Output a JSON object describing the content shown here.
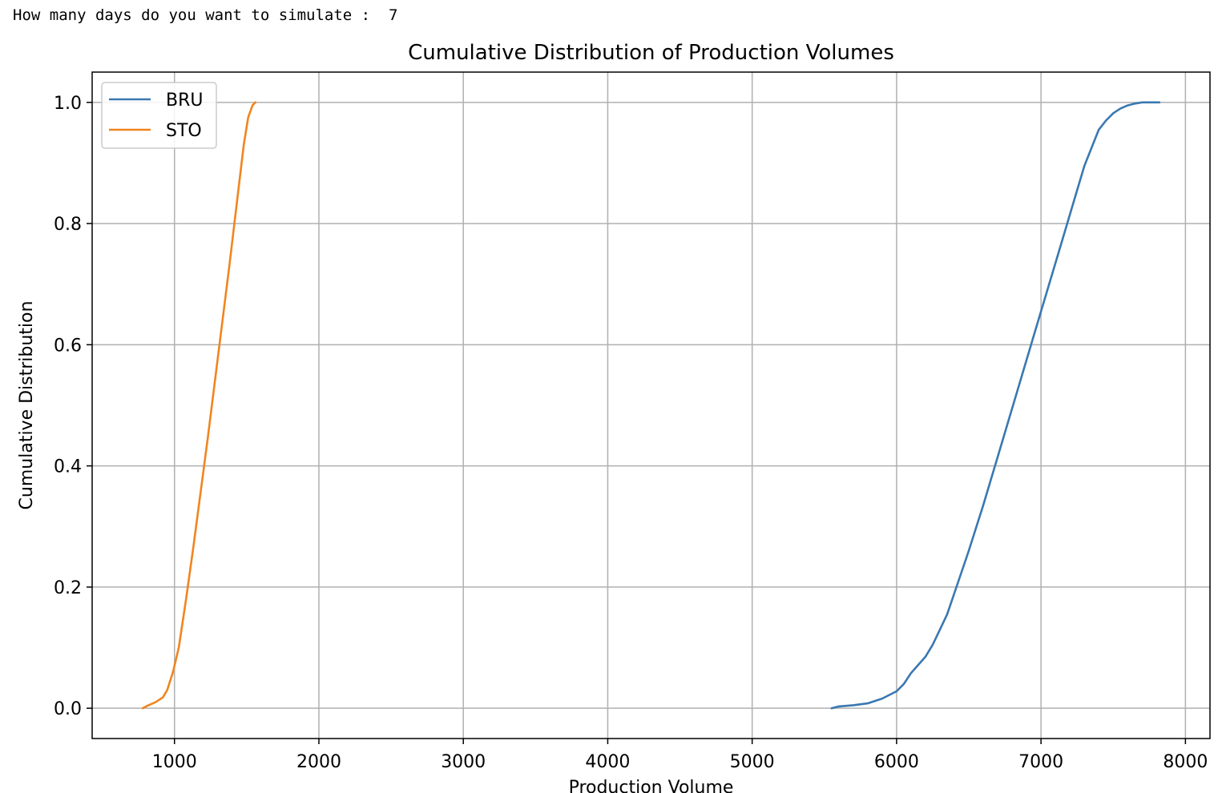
{
  "prompt": {
    "text": "How many days do you want to simulate :",
    "value": "7"
  },
  "chart_data": {
    "type": "line",
    "title": "Cumulative Distribution of Production Volumes",
    "xlabel": "Production Volume",
    "ylabel": "Cumulative Distribution",
    "xlim": [
      430,
      8170
    ],
    "ylim": [
      -0.05,
      1.05
    ],
    "xticks": [
      1000,
      2000,
      3000,
      4000,
      5000,
      6000,
      7000,
      8000
    ],
    "yticks": [
      0.0,
      0.2,
      0.4,
      0.6,
      0.8,
      1.0
    ],
    "xtick_labels": [
      "1000",
      "2000",
      "3000",
      "4000",
      "5000",
      "6000",
      "7000",
      "8000"
    ],
    "ytick_labels": [
      "0.0",
      "0.2",
      "0.4",
      "0.6",
      "0.8",
      "1.0"
    ],
    "grid": true,
    "legend_position": "top-left",
    "series": [
      {
        "name": "BRU",
        "color": "#3a78b1",
        "x": [
          5550,
          5600,
          5700,
          5800,
          5850,
          5900,
          6000,
          6050,
          6100,
          6200,
          6250,
          6300,
          6350,
          6400,
          6450,
          6500,
          6600,
          6700,
          6800,
          6900,
          7000,
          7100,
          7200,
          7300,
          7400,
          7450,
          7500,
          7550,
          7600,
          7650,
          7700,
          7820
        ],
        "y": [
          0.0,
          0.003,
          0.005,
          0.008,
          0.012,
          0.016,
          0.028,
          0.04,
          0.058,
          0.085,
          0.105,
          0.13,
          0.155,
          0.19,
          0.225,
          0.26,
          0.335,
          0.415,
          0.495,
          0.575,
          0.655,
          0.735,
          0.815,
          0.895,
          0.955,
          0.97,
          0.982,
          0.99,
          0.995,
          0.998,
          1.0,
          1.0
        ]
      },
      {
        "name": "STO",
        "color": "#f0851f",
        "x": [
          780,
          820,
          870,
          920,
          950,
          990,
          1030,
          1080,
          1130,
          1180,
          1230,
          1280,
          1330,
          1380,
          1430,
          1480,
          1510,
          1540,
          1560
        ],
        "y": [
          0.0,
          0.005,
          0.01,
          0.018,
          0.03,
          0.06,
          0.1,
          0.18,
          0.265,
          0.355,
          0.445,
          0.54,
          0.635,
          0.73,
          0.83,
          0.93,
          0.975,
          0.995,
          1.0
        ]
      }
    ]
  }
}
